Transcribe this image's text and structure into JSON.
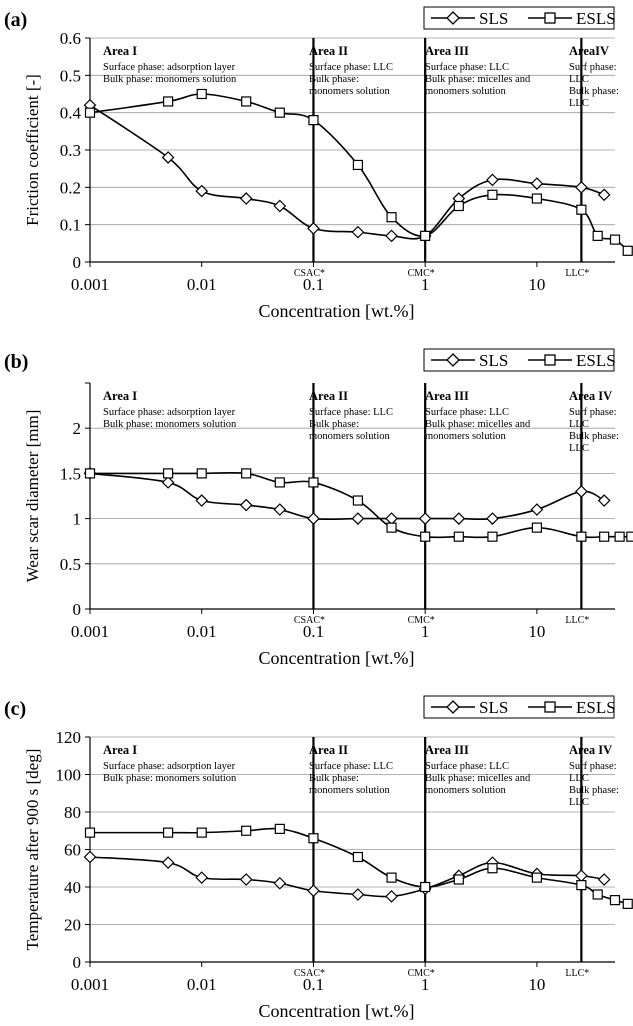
{
  "chart_data": [
    {
      "panel": "(a)",
      "type": "line",
      "ylabel": "Friction coefficient [-]",
      "xlabel": "Concentration [wt.%]",
      "x_scale": "log",
      "xlim": [
        0.001,
        50
      ],
      "ylim": [
        0,
        0.6
      ],
      "yticks": [
        "0",
        "0.1",
        "0.2",
        "0.3",
        "0.4",
        "0.5",
        "0.6"
      ],
      "xticks": [
        {
          "value": 0.001,
          "label": "0.001"
        },
        {
          "value": 0.01,
          "label": "0.01"
        },
        {
          "value": 0.1,
          "label": "0.1"
        },
        {
          "value": 1,
          "label": "1"
        },
        {
          "value": 10,
          "label": "10"
        }
      ],
      "markers": [
        {
          "x": 0.1,
          "label": "CSAC*"
        },
        {
          "x": 1,
          "label": "CMC*"
        },
        {
          "x": 25,
          "label": "LLC*"
        }
      ],
      "areas": [
        {
          "title": "Area I",
          "lines": [
            "Surface phase: adsorption layer",
            "Bulk phase: monomers solution"
          ]
        },
        {
          "title": "Area II",
          "lines": [
            "Surface phase: LLC",
            "Bulk phase:",
            "monomers solution"
          ]
        },
        {
          "title": "Area III",
          "lines": [
            "Surface phase: LLC",
            "Bulk phase: micelles and",
            "monomers solution"
          ]
        },
        {
          "title": "AreaIV",
          "lines": [
            "Surf phase:",
            "LLC",
            "Bulk phase:",
            "LLC"
          ]
        }
      ],
      "legend_position": "top-right",
      "series": [
        {
          "name": "SLS",
          "marker": "diamond",
          "x": [
            0.001,
            0.005,
            0.01,
            0.025,
            0.05,
            0.1,
            0.25,
            0.5,
            1,
            2,
            4,
            10,
            25,
            40
          ],
          "y": [
            0.42,
            0.28,
            0.19,
            0.17,
            0.15,
            0.09,
            0.08,
            0.07,
            0.07,
            0.17,
            0.22,
            0.21,
            0.2,
            0.18
          ]
        },
        {
          "name": "ESLS",
          "marker": "square",
          "x": [
            0.001,
            0.005,
            0.01,
            0.025,
            0.05,
            0.1,
            0.25,
            0.5,
            1,
            2,
            4,
            10,
            25,
            35,
            50,
            65
          ],
          "y": [
            0.4,
            0.43,
            0.45,
            0.43,
            0.4,
            0.38,
            0.26,
            0.12,
            0.07,
            0.15,
            0.18,
            0.17,
            0.14,
            0.07,
            0.06,
            0.03
          ]
        }
      ]
    },
    {
      "panel": "(b)",
      "type": "line",
      "ylabel": "Wear scar diameter [mm]",
      "xlabel": "Concentration [wt.%]",
      "x_scale": "log",
      "xlim": [
        0.001,
        50
      ],
      "ylim": [
        0,
        2.5
      ],
      "yticks": [
        "0",
        "0.5",
        "1",
        "1.5",
        "2"
      ],
      "ytick_values": [
        0,
        0.5,
        1,
        1.5,
        2
      ],
      "xticks": [
        {
          "value": 0.001,
          "label": "0.001"
        },
        {
          "value": 0.01,
          "label": "0.01"
        },
        {
          "value": 0.1,
          "label": "0.1"
        },
        {
          "value": 1,
          "label": "1"
        },
        {
          "value": 10,
          "label": "10"
        }
      ],
      "markers": [
        {
          "x": 0.1,
          "label": "CSAC*"
        },
        {
          "x": 1,
          "label": "CMC*"
        },
        {
          "x": 25,
          "label": "LLC*"
        }
      ],
      "areas": [
        {
          "title": "Area I",
          "lines": [
            "Surface phase: adsorption layer",
            "Bulk phase: monomers solution"
          ]
        },
        {
          "title": "Area II",
          "lines": [
            "Surface phase: LLC",
            "Bulk phase:",
            "monomers solution"
          ]
        },
        {
          "title": "Area III",
          "lines": [
            "Surface phase: LLC",
            "Bulk phase: micelles and",
            "monomers solution"
          ]
        },
        {
          "title": "Area IV",
          "lines": [
            "Surf phase:",
            "LLC",
            "Bulk phase:",
            "LLC"
          ]
        }
      ],
      "legend_position": "top-right",
      "series": [
        {
          "name": "SLS",
          "marker": "diamond",
          "x": [
            0.001,
            0.005,
            0.01,
            0.025,
            0.05,
            0.1,
            0.25,
            0.5,
            1,
            2,
            4,
            10,
            25,
            40
          ],
          "y": [
            1.5,
            1.4,
            1.2,
            1.15,
            1.1,
            1.0,
            1.0,
            1.0,
            1.0,
            1.0,
            1.0,
            1.1,
            1.3,
            1.2
          ]
        },
        {
          "name": "ESLS",
          "marker": "square",
          "x": [
            0.001,
            0.005,
            0.01,
            0.025,
            0.05,
            0.1,
            0.25,
            0.5,
            1,
            2,
            4,
            10,
            25,
            40,
            55,
            70
          ],
          "y": [
            1.5,
            1.5,
            1.5,
            1.5,
            1.4,
            1.4,
            1.2,
            0.9,
            0.8,
            0.8,
            0.8,
            0.9,
            0.8,
            0.8,
            0.8,
            0.8
          ]
        }
      ]
    },
    {
      "panel": "(c)",
      "type": "line",
      "ylabel": "Temperature after 900 s [deg]",
      "xlabel": "Concentration [wt.%]",
      "x_scale": "log",
      "xlim": [
        0.001,
        50
      ],
      "ylim": [
        0,
        120
      ],
      "yticks": [
        "0",
        "20",
        "40",
        "60",
        "80",
        "100",
        "120"
      ],
      "xticks": [
        {
          "value": 0.001,
          "label": "0.001"
        },
        {
          "value": 0.01,
          "label": "0.01"
        },
        {
          "value": 0.1,
          "label": "0.1"
        },
        {
          "value": 1,
          "label": "1"
        },
        {
          "value": 10,
          "label": "10"
        }
      ],
      "markers": [
        {
          "x": 0.1,
          "label": "CSAC*"
        },
        {
          "x": 1,
          "label": "CMC*"
        },
        {
          "x": 25,
          "label": "LLC*"
        }
      ],
      "areas": [
        {
          "title": "Area I",
          "lines": [
            "Surface phase: adsorption layer",
            "Bulk phase: monomers solution"
          ]
        },
        {
          "title": "Area II",
          "lines": [
            "Surface phase: LLC",
            "Bulk phase:",
            "monomers solution"
          ]
        },
        {
          "title": "Area III",
          "lines": [
            "Surface phase: LLC",
            "Bulk phase: micelles and",
            "monomers solution"
          ]
        },
        {
          "title": "Area IV",
          "lines": [
            "Surf phase:",
            "LLC",
            "Bulk phase:",
            "LLC"
          ]
        }
      ],
      "legend_position": "top-right",
      "series": [
        {
          "name": "SLS",
          "marker": "diamond",
          "x": [
            0.001,
            0.005,
            0.01,
            0.025,
            0.05,
            0.1,
            0.25,
            0.5,
            1,
            2,
            4,
            10,
            25,
            40
          ],
          "y": [
            56,
            53,
            45,
            44,
            42,
            38,
            36,
            35,
            39,
            46,
            53,
            47,
            46,
            44
          ]
        },
        {
          "name": "ESLS",
          "marker": "square",
          "x": [
            0.001,
            0.005,
            0.01,
            0.025,
            0.05,
            0.1,
            0.25,
            0.5,
            1,
            2,
            4,
            10,
            25,
            35,
            50,
            65
          ],
          "y": [
            69,
            69,
            69,
            70,
            71,
            66,
            56,
            45,
            40,
            44,
            50,
            45,
            41,
            36,
            33,
            31
          ]
        }
      ]
    }
  ]
}
